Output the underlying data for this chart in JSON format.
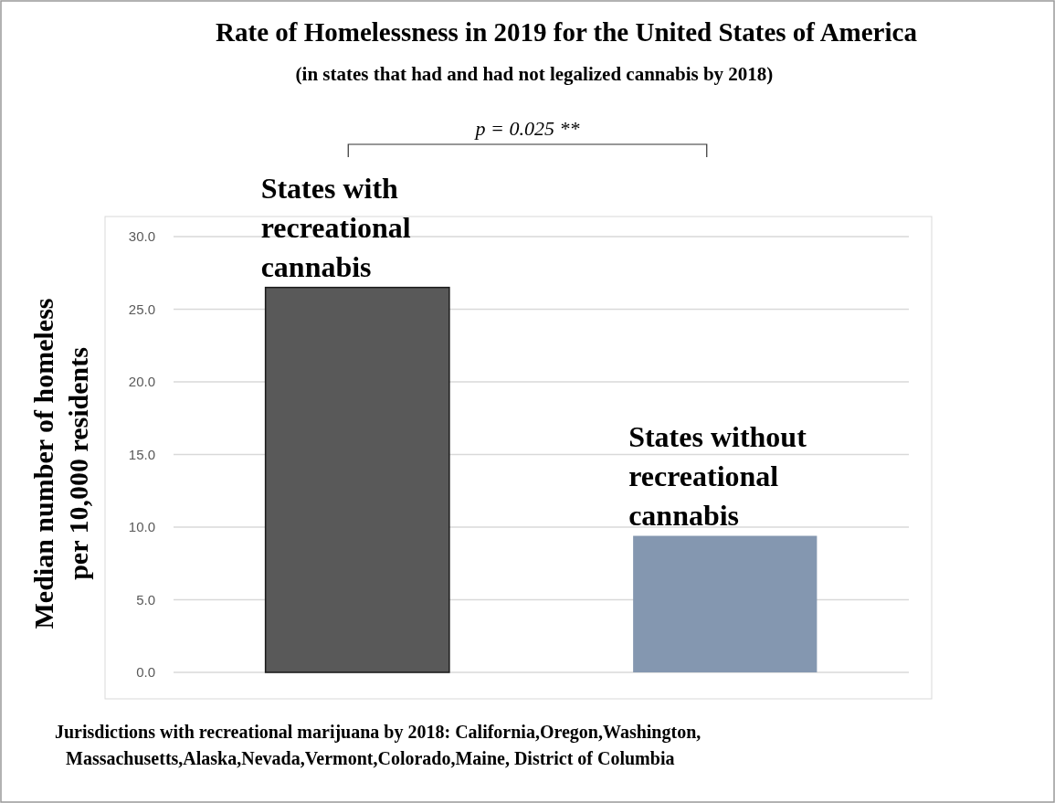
{
  "chart_data": {
    "type": "bar",
    "title": "Rate of Homelessness in 2019 for the United States of America",
    "subtitle": "(in states that had and had not legalized cannabis by 2018)",
    "ylabel": "Median number of homeless per 10,000 residents",
    "categories": [
      "States with recreational cannabis",
      "States without recreational cannabis"
    ],
    "values": [
      26.5,
      9.4
    ],
    "colors": [
      "#595959",
      "#8497b0"
    ],
    "ylim": [
      0,
      30
    ],
    "yticks": [
      {
        "value": 0,
        "label": "0.0"
      },
      {
        "value": 5,
        "label": "5.0"
      },
      {
        "value": 10,
        "label": "10.0"
      },
      {
        "value": 15,
        "label": "15.0"
      },
      {
        "value": 20,
        "label": "20.0"
      },
      {
        "value": 25,
        "label": "25.0"
      },
      {
        "value": 30,
        "label": "30.0"
      }
    ],
    "grid": "y",
    "annotations": [
      "p = 0.025 **",
      "Jurisdictions with recreational marijuana by 2018: California,Oregon,Washington, Massachusetts,Alaska,Nevada,Vermont,Colorado,Maine, District of Columbia"
    ]
  }
}
